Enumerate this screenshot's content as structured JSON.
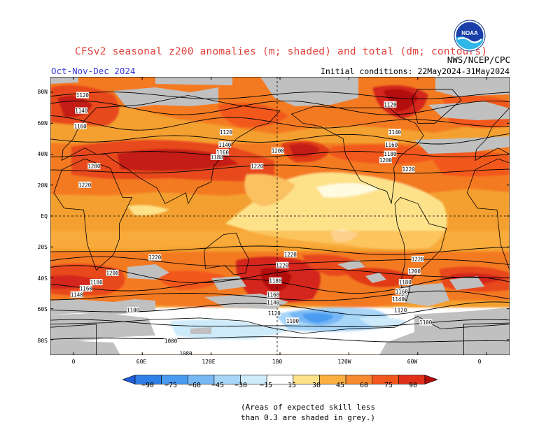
{
  "header": {
    "title": "CFSv2 seasonal z200 anomalies (m; shaded) and total (dm; contours)",
    "season": "Oct-Nov-Dec 2024",
    "initial_conditions": "Initial conditions: 22May2024-31May2024",
    "agency": "NWS/NCEP/CPC",
    "logo_text": "NOAA"
  },
  "map": {
    "lat_labels": [
      "80N",
      "60N",
      "40N",
      "20N",
      "EQ",
      "20S",
      "40S",
      "60S",
      "80S"
    ],
    "lon_labels": [
      "0",
      "60E",
      "120E",
      "180",
      "120W",
      "60W",
      "0"
    ],
    "contour_labels": [
      {
        "text": "1120",
        "lon": 8,
        "lat": 78
      },
      {
        "text": "1140",
        "lon": 7,
        "lat": 68
      },
      {
        "text": "1160",
        "lon": 6,
        "lat": 58
      },
      {
        "text": "1120",
        "lon": 133,
        "lat": 54
      },
      {
        "text": "1140",
        "lon": 132,
        "lat": 46
      },
      {
        "text": "1160",
        "lon": 130,
        "lat": 41
      },
      {
        "text": "1180",
        "lon": 125,
        "lat": 38
      },
      {
        "text": "1200",
        "lon": 18,
        "lat": 32
      },
      {
        "text": "1200",
        "lon": 178,
        "lat": 42
      },
      {
        "text": "1220",
        "lon": 160,
        "lat": 32
      },
      {
        "text": "1220",
        "lon": 10,
        "lat": 20
      },
      {
        "text": "1120",
        "lon": 276,
        "lat": 72
      },
      {
        "text": "1140",
        "lon": 280,
        "lat": 54
      },
      {
        "text": "1160",
        "lon": 277,
        "lat": 46
      },
      {
        "text": "1180",
        "lon": 276,
        "lat": 40
      },
      {
        "text": "1200",
        "lon": 272,
        "lat": 36
      },
      {
        "text": "1220",
        "lon": 292,
        "lat": 30
      },
      {
        "text": "1220",
        "lon": 71,
        "lat": -27
      },
      {
        "text": "1200",
        "lon": 34,
        "lat": -37
      },
      {
        "text": "1180",
        "lon": 20,
        "lat": -43
      },
      {
        "text": "1160",
        "lon": 11,
        "lat": -47
      },
      {
        "text": "1140",
        "lon": 3,
        "lat": -51
      },
      {
        "text": "1220",
        "lon": 189,
        "lat": -25
      },
      {
        "text": "1220",
        "lon": 182,
        "lat": -32
      },
      {
        "text": "1180",
        "lon": 176,
        "lat": -42
      },
      {
        "text": "1160",
        "lon": 174,
        "lat": -51
      },
      {
        "text": "1140",
        "lon": 174,
        "lat": -56
      },
      {
        "text": "1120",
        "lon": 175,
        "lat": -63
      },
      {
        "text": "1100",
        "lon": 191,
        "lat": -68
      },
      {
        "text": "1100",
        "lon": 52,
        "lat": -61
      },
      {
        "text": "1080",
        "lon": 85,
        "lat": -81
      },
      {
        "text": "1080",
        "lon": 98,
        "lat": -89
      },
      {
        "text": "1220",
        "lon": 300,
        "lat": -28
      },
      {
        "text": "1200",
        "lon": 297,
        "lat": -36
      },
      {
        "text": "1180",
        "lon": 289,
        "lat": -43
      },
      {
        "text": "1160",
        "lon": 286,
        "lat": -49
      },
      {
        "text": "1140",
        "lon": 283,
        "lat": -54
      },
      {
        "text": "1120",
        "lon": 285,
        "lat": -61
      },
      {
        "text": "1100",
        "lon": 307,
        "lat": -69
      }
    ]
  },
  "colorbar": {
    "labels": [
      "−90",
      "−75",
      "−60",
      "−45",
      "−30",
      "−15",
      "15",
      "30",
      "45",
      "60",
      "75",
      "90"
    ],
    "colors": [
      "#1f5fdc",
      "#2f7fe6",
      "#4a9cf0",
      "#78b8f4",
      "#a8d6f8",
      "#cdebfa",
      "#ffffff",
      "#fde28a",
      "#fbb040",
      "#f78a2e",
      "#f2581e",
      "#e0301a",
      "#b40a0a"
    ]
  },
  "note": {
    "line1": "(Areas of expected skill less",
    "line2": "than 0.3 are shaded in grey.)"
  }
}
